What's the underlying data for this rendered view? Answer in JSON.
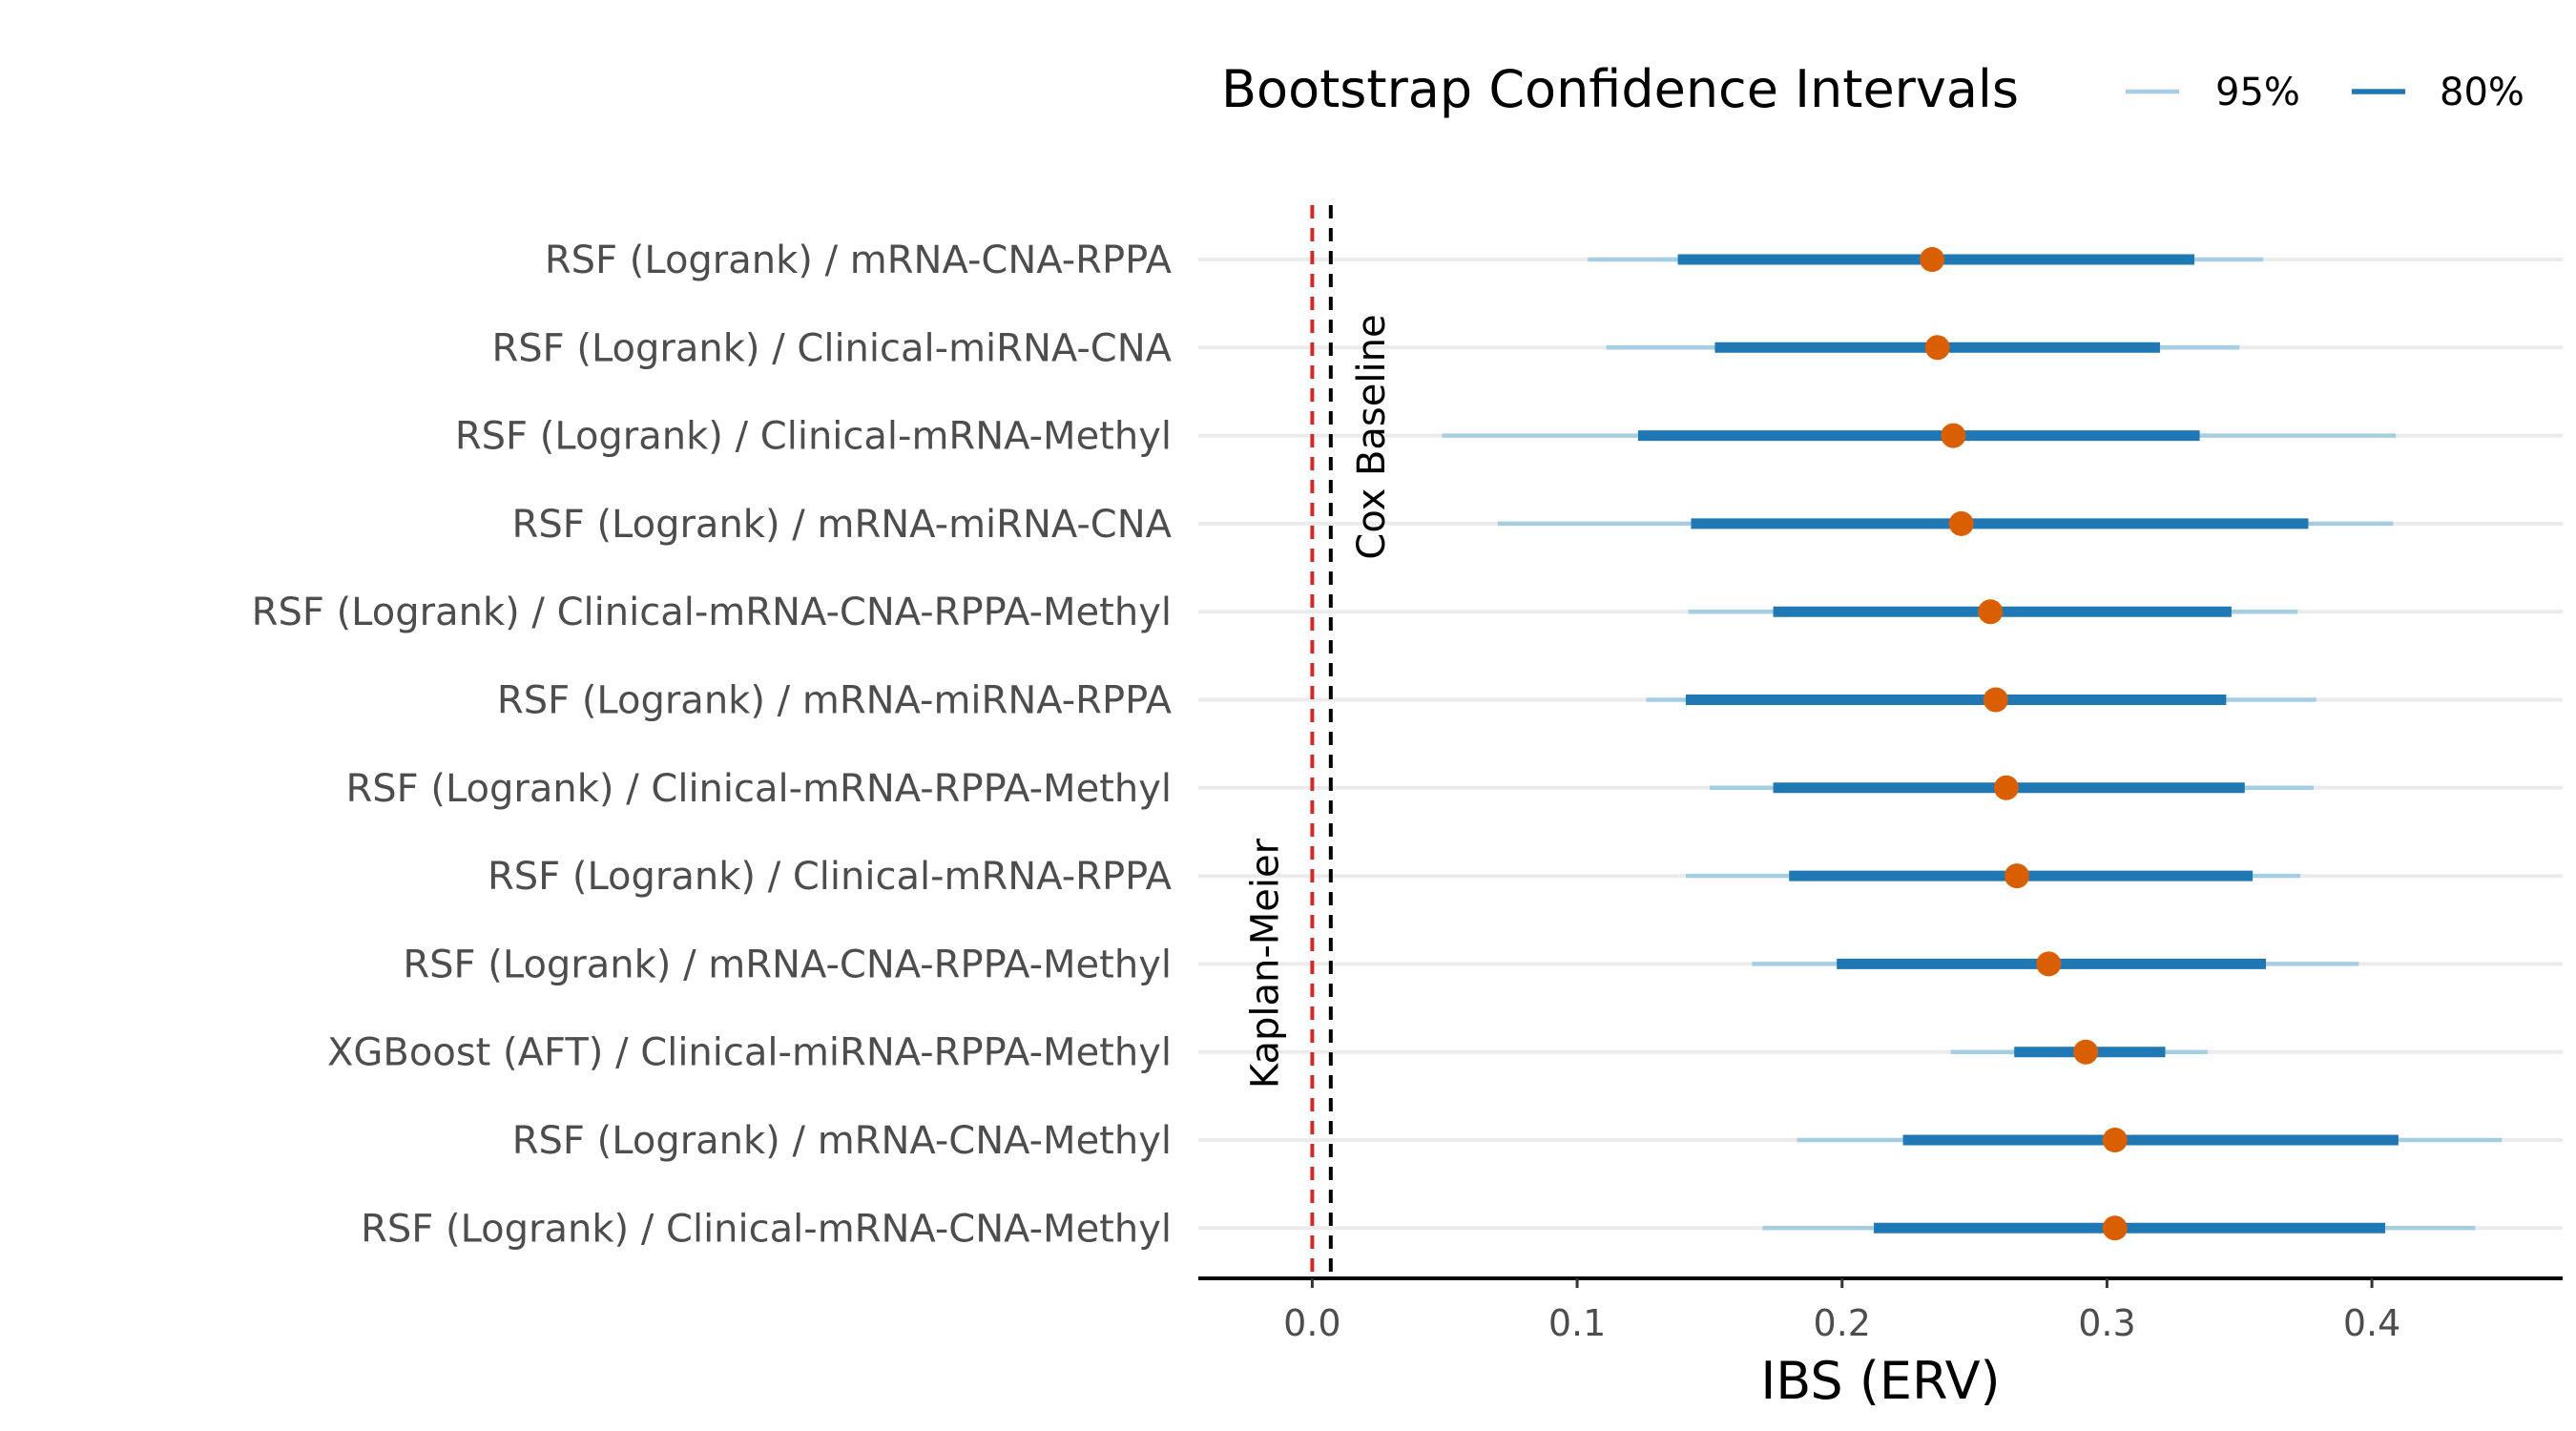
{
  "chart_data": {
    "type": "forest",
    "title": "",
    "xlabel": "IBS (ERV)",
    "ylabel": "",
    "xlim": [
      -0.043,
      0.472
    ],
    "xticks": [
      0.0,
      0.1,
      0.2,
      0.3,
      0.4
    ],
    "xtick_labels": [
      "0.0",
      "0.1",
      "0.2",
      "0.3",
      "0.4"
    ],
    "grid": "horizontal",
    "legend": {
      "title": "Bootstrap Confidence Intervals",
      "placement": "top-right",
      "entries": [
        {
          "name": "95%",
          "color": "#a6cee3"
        },
        {
          "name": "80%",
          "color": "#1f78b4"
        }
      ]
    },
    "point_color": "#d95f02",
    "reference_lines": [
      {
        "label": "Kaplan-Meier",
        "x": 0.0,
        "color": "#d62728",
        "style": "dashed"
      },
      {
        "label": "Cox Baseline",
        "x": 0.007,
        "color": "#000000",
        "style": "dashed"
      }
    ],
    "rows": [
      {
        "label": "RSF (Logrank) / mRNA-CNA-RPPA",
        "estimate": 0.234,
        "ci80": [
          0.138,
          0.333
        ],
        "ci95": [
          0.104,
          0.359
        ]
      },
      {
        "label": "RSF (Logrank) / Clinical-miRNA-CNA",
        "estimate": 0.236,
        "ci80": [
          0.152,
          0.32
        ],
        "ci95": [
          0.111,
          0.35
        ]
      },
      {
        "label": "RSF (Logrank) / Clinical-mRNA-Methyl",
        "estimate": 0.242,
        "ci80": [
          0.123,
          0.335
        ],
        "ci95": [
          0.049,
          0.409
        ]
      },
      {
        "label": "RSF (Logrank) / mRNA-miRNA-CNA",
        "estimate": 0.245,
        "ci80": [
          0.143,
          0.376
        ],
        "ci95": [
          0.07,
          0.408
        ]
      },
      {
        "label": "RSF (Logrank) / Clinical-mRNA-CNA-RPPA-Methyl",
        "estimate": 0.256,
        "ci80": [
          0.174,
          0.347
        ],
        "ci95": [
          0.142,
          0.372
        ]
      },
      {
        "label": "RSF (Logrank) / mRNA-miRNA-RPPA",
        "estimate": 0.258,
        "ci80": [
          0.141,
          0.345
        ],
        "ci95": [
          0.126,
          0.379
        ]
      },
      {
        "label": "RSF (Logrank) / Clinical-mRNA-RPPA-Methyl",
        "estimate": 0.262,
        "ci80": [
          0.174,
          0.352
        ],
        "ci95": [
          0.15,
          0.378
        ]
      },
      {
        "label": "RSF (Logrank) / Clinical-mRNA-RPPA",
        "estimate": 0.266,
        "ci80": [
          0.18,
          0.355
        ],
        "ci95": [
          0.141,
          0.373
        ]
      },
      {
        "label": "RSF (Logrank) / mRNA-CNA-RPPA-Methyl",
        "estimate": 0.278,
        "ci80": [
          0.198,
          0.36
        ],
        "ci95": [
          0.166,
          0.395
        ]
      },
      {
        "label": "XGBoost (AFT) / Clinical-miRNA-RPPA-Methyl",
        "estimate": 0.292,
        "ci80": [
          0.265,
          0.322
        ],
        "ci95": [
          0.241,
          0.338
        ]
      },
      {
        "label": "RSF (Logrank) / mRNA-CNA-Methyl",
        "estimate": 0.303,
        "ci80": [
          0.223,
          0.41
        ],
        "ci95": [
          0.183,
          0.449
        ]
      },
      {
        "label": "RSF (Logrank) / Clinical-mRNA-CNA-Methyl",
        "estimate": 0.303,
        "ci80": [
          0.212,
          0.405
        ],
        "ci95": [
          0.17,
          0.439
        ]
      }
    ]
  }
}
